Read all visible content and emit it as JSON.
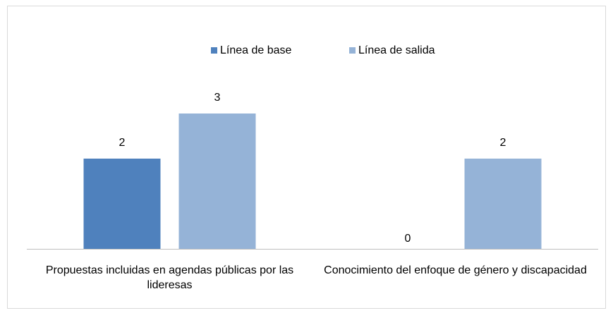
{
  "chart_data": {
    "type": "bar",
    "categories": [
      "Propuestas incluidas en agendas públicas por las lideresas",
      "Conocimiento del enfoque de género y discapacidad"
    ],
    "series": [
      {
        "name": "Línea de base",
        "color": "#4f81bd",
        "values": [
          2,
          0
        ]
      },
      {
        "name": "Línea de salida",
        "color": "#95b3d7",
        "values": [
          3,
          2
        ]
      }
    ],
    "ylim": [
      0,
      4
    ],
    "legend": "top",
    "data_labels": true
  }
}
